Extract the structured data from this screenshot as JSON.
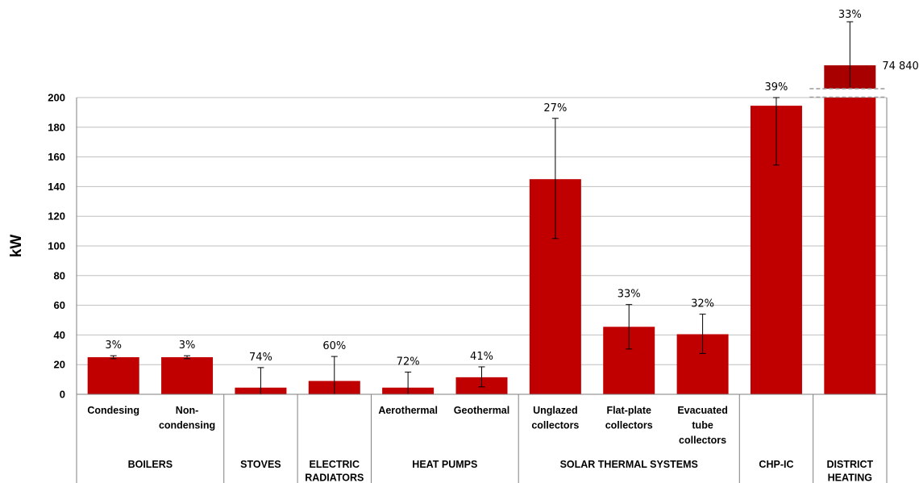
{
  "chart_data": {
    "type": "bar",
    "ylabel": "kW",
    "ylim": [
      0,
      200
    ],
    "yticks": [
      "0",
      "20",
      "40",
      "60",
      "80",
      "100",
      "120",
      "140",
      "160",
      "180",
      "200"
    ],
    "grid": "horizontal",
    "categories": [
      {
        "label": [
          "Condesing"
        ],
        "value": 25,
        "err_low": 24,
        "err_high": 26,
        "pct_label": "3%",
        "group": 0
      },
      {
        "label": [
          "Non-",
          "condensing"
        ],
        "value": 25,
        "err_low": 24,
        "err_high": 26,
        "pct_label": "3%",
        "group": 0
      },
      {
        "label": [],
        "value": 4.5,
        "err_low": 0,
        "err_high": 18,
        "pct_label": "74%",
        "group": 1
      },
      {
        "label": [],
        "value": 9,
        "err_low": 0,
        "err_high": 25.5,
        "pct_label": "60%",
        "group": 2
      },
      {
        "label": [
          "Aerothermal"
        ],
        "value": 4.5,
        "err_low": 0,
        "err_high": 15,
        "pct_label": "72%",
        "group": 3
      },
      {
        "label": [
          "Geothermal"
        ],
        "value": 11.5,
        "err_low": 5,
        "err_high": 18.5,
        "pct_label": "41%",
        "group": 3
      },
      {
        "label": [
          "Unglazed",
          "collectors"
        ],
        "value": 145,
        "err_low": 105,
        "err_high": 186,
        "pct_label": "27%",
        "group": 4
      },
      {
        "label": [
          "Flat-plate",
          "collectors"
        ],
        "value": 45.5,
        "err_low": 30.5,
        "err_high": 60.5,
        "pct_label": "33%",
        "group": 4
      },
      {
        "label": [
          "Evacuated",
          "tube",
          "collectors"
        ],
        "value": 40.5,
        "err_low": 27.5,
        "err_high": 54,
        "pct_label": "32%",
        "group": 4
      },
      {
        "label": [],
        "value": 194.5,
        "err_low": 154.5,
        "err_high": 200,
        "pct_label": "39%",
        "group": 5
      },
      {
        "label": [],
        "value": 74840,
        "value_label": "74 840",
        "broken_axis": true,
        "pct_label": "33%",
        "group": 6
      }
    ],
    "groups": [
      {
        "label": [
          "BOILERS"
        ]
      },
      {
        "label": [
          "STOVES"
        ]
      },
      {
        "label": [
          "ELECTRIC",
          "RADIATORS"
        ]
      },
      {
        "label": [
          "HEAT PUMPS"
        ]
      },
      {
        "label": [
          "SOLAR THERMAL SYSTEMS"
        ]
      },
      {
        "label": [
          "CHP-IC"
        ]
      },
      {
        "label": [
          "DISTRICT",
          "HEATING"
        ]
      }
    ],
    "colors": {
      "bar": "#C00000",
      "bar_top": "#A80000",
      "grid": "#BFBFBF",
      "axis": "#7F7F7F",
      "error": "#000000"
    }
  }
}
